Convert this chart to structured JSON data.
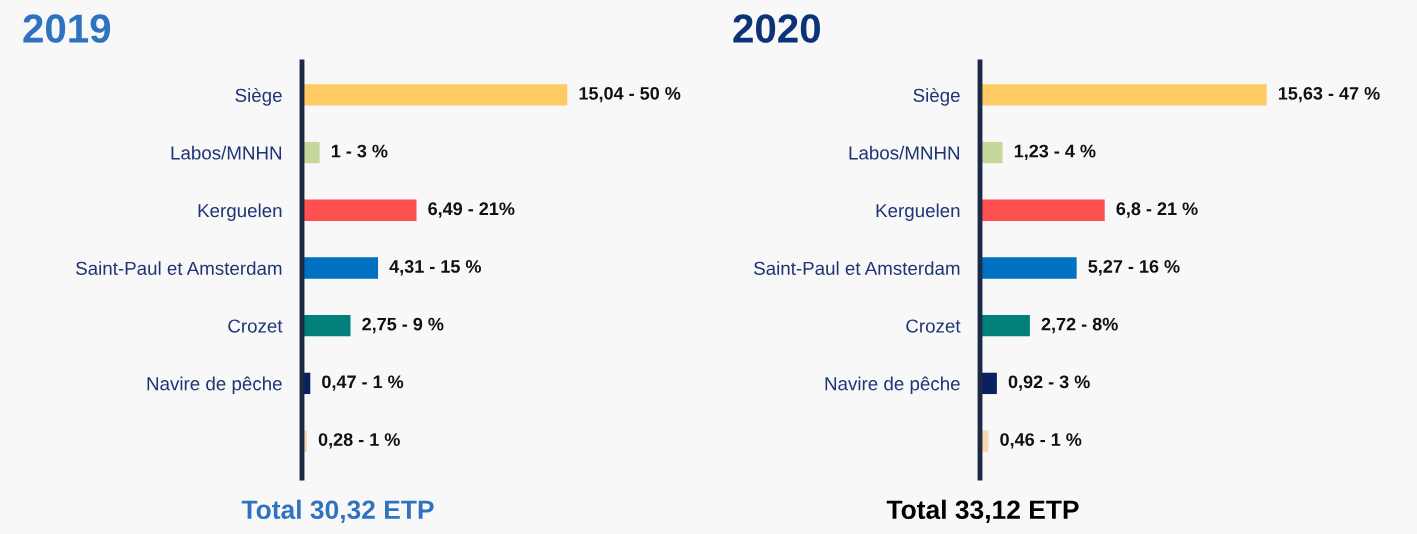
{
  "chart_data": [
    {
      "type": "bar",
      "orientation": "horizontal",
      "title": "2019",
      "categories": [
        "Siège",
        "Labos/MNHN",
        "Kerguelen",
        "Saint-Paul et Amsterdam",
        "Crozet",
        "Navire de pêche",
        null
      ],
      "values": [
        15.04,
        1,
        6.49,
        4.31,
        2.75,
        0.47,
        0.28
      ],
      "colors": [
        "#ffca64",
        "#c5d79c",
        "#ff5050",
        "#0070c0",
        "#007f7b",
        "#0a2060",
        "#fcd5b4"
      ],
      "value_labels": [
        "15,04 - 50 %",
        "1 - 3 %",
        "6,49 - 21%",
        "4,31 - 15 %",
        "2,75 - 9 %",
        "0,47 - 1 %",
        "0,28 - 1 %"
      ],
      "tick_labels": "y",
      "annotations": [
        "Total 30,32 ETP"
      ]
    },
    {
      "type": "bar",
      "orientation": "horizontal",
      "title": "2020",
      "categories": [
        "Siège",
        "Labos/MNHN",
        "Kerguelen",
        "Saint-Paul et Amsterdam",
        "Crozet",
        "Navire de pêche",
        null
      ],
      "values": [
        15.63,
        1.23,
        6.8,
        5.27,
        2.72,
        0.92,
        0.46
      ],
      "colors": [
        "#ffca64",
        "#c5d79c",
        "#ff5050",
        "#0070c0",
        "#007f7b",
        "#0a2060",
        "#fcd5b4"
      ],
      "value_labels": [
        "15,63 - 47 %",
        "1,23 - 4 %",
        "6,8 - 21 %",
        "5,27 - 16 %",
        "2,72 - 8%",
        "0,92 - 3 %",
        "0,46 - 1 %"
      ],
      "tick_labels": "y",
      "annotations": [
        "Total 33,12 ETP"
      ]
    }
  ]
}
